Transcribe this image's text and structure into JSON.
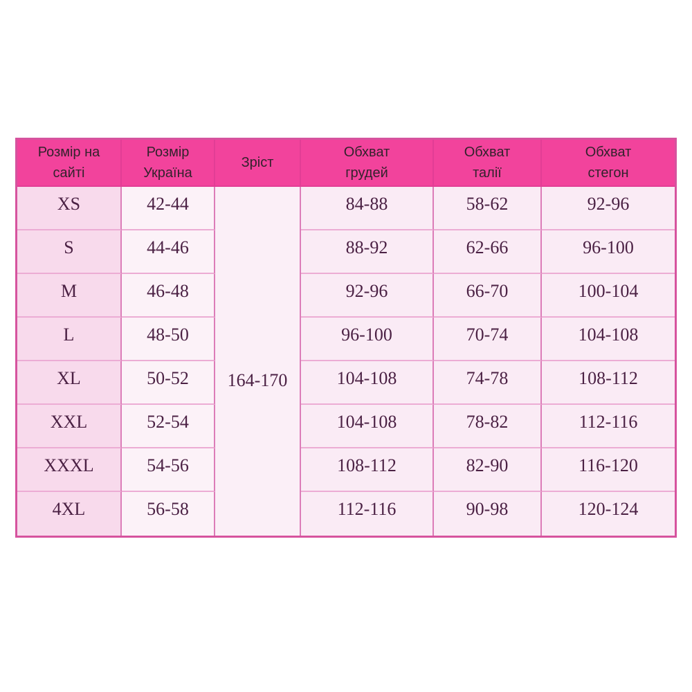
{
  "colors": {
    "header-bg": "#f2439c",
    "header-sep": "#e23d95",
    "header-text": "#33222c",
    "body-text": "#4b2144",
    "col1-bg": "#f8daec",
    "col2-bg": "#fcf2f8",
    "col3-bg": "#fbeff7",
    "meas-bg": "#faebf5",
    "outer-border": "#d6539e",
    "v-border": "#dc7cb8",
    "h-border": "#ecacd4",
    "page-bg": "#ffffff"
  },
  "table": {
    "headers": {
      "size_site": "Розмір на\nсайті",
      "size_ua": "Розмір\nУкраїна",
      "height": "Зріст",
      "chest": "Обхват\nгрудей",
      "waist": "Обхват\nталії",
      "hips": "Обхват\nстегон"
    },
    "height_value": "164-170",
    "rows": [
      {
        "size_site": "XS",
        "size_ua": "42-44",
        "chest": "84-88",
        "waist": "58-62",
        "hips": "92-96"
      },
      {
        "size_site": "S",
        "size_ua": "44-46",
        "chest": "88-92",
        "waist": "62-66",
        "hips": "96-100"
      },
      {
        "size_site": "M",
        "size_ua": "46-48",
        "chest": "92-96",
        "waist": "66-70",
        "hips": "100-104"
      },
      {
        "size_site": "L",
        "size_ua": "48-50",
        "chest": "96-100",
        "waist": "70-74",
        "hips": "104-108"
      },
      {
        "size_site": "XL",
        "size_ua": "50-52",
        "chest": "104-108",
        "waist": "74-78",
        "hips": "108-112"
      },
      {
        "size_site": "XXL",
        "size_ua": "52-54",
        "chest": "104-108",
        "waist": "78-82",
        "hips": "112-116"
      },
      {
        "size_site": "XXXL",
        "size_ua": "54-56",
        "chest": "108-112",
        "waist": "82-90",
        "hips": "116-120"
      },
      {
        "size_site": "4XL",
        "size_ua": "56-58",
        "chest": "112-116",
        "waist": "90-98",
        "hips": "120-124"
      }
    ]
  }
}
